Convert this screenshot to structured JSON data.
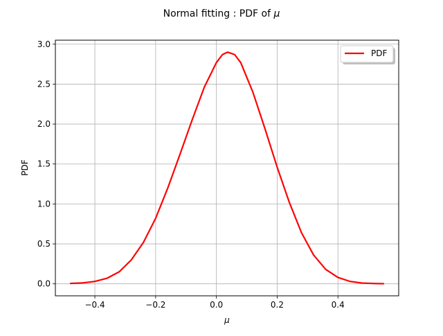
{
  "chart_data": {
    "type": "line",
    "title_prefix": "Normal fitting : PDF of ",
    "title_symbol": "μ",
    "xlabel": "μ",
    "ylabel": "PDF",
    "xlim": [
      -0.53,
      0.6
    ],
    "ylim": [
      -0.15,
      3.05
    ],
    "xticks": [
      -0.4,
      -0.2,
      0.0,
      0.2,
      0.4
    ],
    "xtick_labels": [
      "−0.4",
      "−0.2",
      "0.0",
      "0.2",
      "0.4"
    ],
    "yticks": [
      0.0,
      0.5,
      1.0,
      1.5,
      2.0,
      2.5,
      3.0
    ],
    "ytick_labels": [
      "0.0",
      "0.5",
      "1.0",
      "1.5",
      "2.0",
      "2.5",
      "3.0"
    ],
    "grid": true,
    "legend_position": "top-right",
    "series": [
      {
        "name": "PDF",
        "color": "#ff0000",
        "x": [
          -0.48,
          -0.44,
          -0.4,
          -0.36,
          -0.32,
          -0.28,
          -0.24,
          -0.2,
          -0.16,
          -0.12,
          -0.08,
          -0.04,
          0.0,
          0.02,
          0.037,
          0.06,
          0.08,
          0.12,
          0.16,
          0.2,
          0.24,
          0.28,
          0.32,
          0.36,
          0.4,
          0.44,
          0.48,
          0.52,
          0.55
        ],
        "y": [
          0.005,
          0.012,
          0.03,
          0.07,
          0.15,
          0.3,
          0.52,
          0.82,
          1.2,
          1.62,
          2.05,
          2.46,
          2.77,
          2.87,
          2.9,
          2.87,
          2.77,
          2.4,
          1.94,
          1.46,
          1.02,
          0.64,
          0.36,
          0.18,
          0.08,
          0.03,
          0.01,
          0.004,
          0.002
        ]
      }
    ]
  }
}
